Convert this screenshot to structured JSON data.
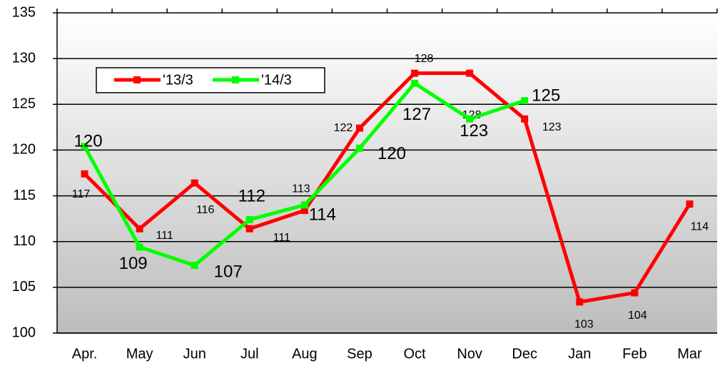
{
  "chart_data": {
    "type": "line",
    "categories": [
      "Apr.",
      "May",
      "Jun",
      "Jul",
      "Aug",
      "Sep",
      "Oct",
      "Nov",
      "Dec",
      "Jan",
      "Feb",
      "Mar"
    ],
    "series": [
      {
        "name": "'13/3",
        "color": "#ff0000",
        "values": [
          117.4,
          111.4,
          116.4,
          111.4,
          113.4,
          122.4,
          128.4,
          128.4,
          123.4,
          103.4,
          104.4,
          114.1
        ],
        "value_labels": [
          "117",
          "111",
          "116",
          "111",
          "113",
          "122",
          "128",
          "128",
          "123",
          "103",
          "104",
          "114"
        ]
      },
      {
        "name": "'14/3",
        "color": "#00ff00",
        "values": [
          120.4,
          109.4,
          107.4,
          112.4,
          114.0,
          120.2,
          127.3,
          123.4,
          125.4,
          null,
          null,
          null
        ],
        "value_labels": [
          "120",
          "109",
          "107",
          "112",
          "114",
          "120",
          "127",
          "123",
          "125",
          null,
          null,
          null
        ]
      }
    ],
    "ylim": [
      100,
      135
    ],
    "yticks": [
      100,
      105,
      110,
      115,
      120,
      125,
      130,
      135
    ],
    "grid": true,
    "legend": "top-left"
  }
}
